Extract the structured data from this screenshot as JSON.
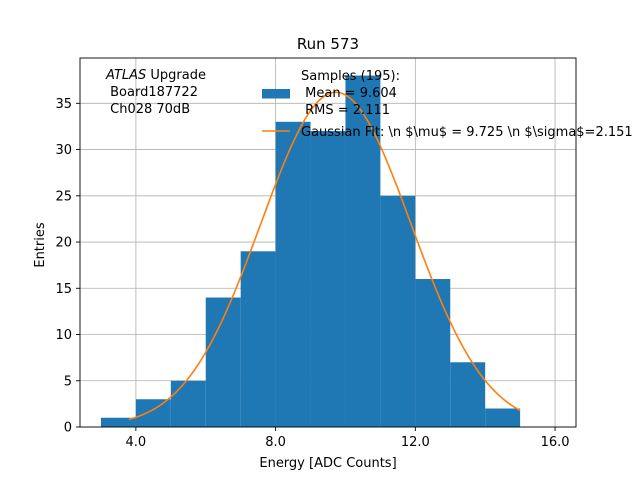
{
  "chart_data": {
    "type": "bar",
    "title": "Run 573",
    "xlabel": "Energy [ADC Counts]",
    "ylabel": "Entries",
    "xlim": [
      2.4,
      16.6
    ],
    "ylim": [
      0,
      39.9
    ],
    "xticks": [
      4.0,
      8.0,
      12.0,
      16.0
    ],
    "xtick_labels": [
      "4.0",
      "8.0",
      "12.0",
      "16.0"
    ],
    "yticks": [
      0,
      5,
      10,
      15,
      20,
      25,
      30,
      35
    ],
    "ytick_labels": [
      "0",
      "5",
      "10",
      "15",
      "20",
      "25",
      "30",
      "35"
    ],
    "grid": true,
    "bins": [
      {
        "x0": 3,
        "x1": 4,
        "value": 1
      },
      {
        "x0": 4,
        "x1": 5,
        "value": 3
      },
      {
        "x0": 5,
        "x1": 6,
        "value": 5
      },
      {
        "x0": 6,
        "x1": 7,
        "value": 14
      },
      {
        "x0": 7,
        "x1": 8,
        "value": 19
      },
      {
        "x0": 8,
        "x1": 9,
        "value": 33
      },
      {
        "x0": 9,
        "x1": 10,
        "value": 32
      },
      {
        "x0": 10,
        "x1": 11,
        "value": 38
      },
      {
        "x0": 11,
        "x1": 12,
        "value": 25
      },
      {
        "x0": 12,
        "x1": 13,
        "value": 16
      },
      {
        "x0": 13,
        "x1": 14,
        "value": 7
      },
      {
        "x0": 14,
        "x1": 15,
        "value": 2
      }
    ],
    "fit": {
      "amplitude": 36.2,
      "mu": 9.725,
      "sigma": 2.151,
      "x_range": [
        3.8,
        15.0
      ]
    },
    "annotation_lines": [
      "ATLAS Upgrade",
      " Board187722",
      " Ch028 70dB"
    ],
    "annotation_italic_word": "ATLAS",
    "legend": {
      "placement": "top-center",
      "histogram_lines": [
        "Samples (195):",
        " Mean = 9.604",
        " RMS = 2.111"
      ],
      "fit_label": "Gaussian Fit: \\n $\\mu$ = 9.725 \\n $\\sigma$=2.151"
    },
    "colors": {
      "histogram": "#1f77b4",
      "fit": "#ff7f0e",
      "grid": "#b0b0b0",
      "axes": "#000000"
    }
  }
}
